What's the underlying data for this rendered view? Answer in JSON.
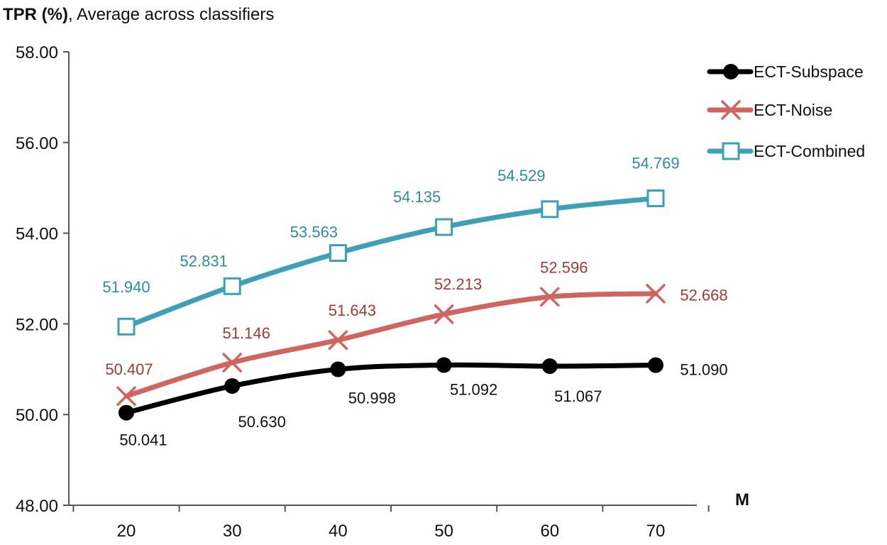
{
  "chart_data": {
    "type": "line",
    "title_bold": "TPR (%)",
    "title_rest": ", Average across classifiers",
    "xlabel": "M",
    "ylabel": "",
    "x": [
      20,
      30,
      40,
      50,
      60,
      70
    ],
    "x_tick_labels": [
      "20",
      "30",
      "40",
      "50",
      "60",
      "70"
    ],
    "ylim": [
      48,
      58
    ],
    "y_ticks": [
      48,
      50,
      52,
      54,
      56,
      58
    ],
    "y_tick_labels": [
      "48.00",
      "50.00",
      "52.00",
      "54.00",
      "56.00",
      "58.00"
    ],
    "grid": false,
    "legend_position": "top-right",
    "series": [
      {
        "name": "ECT-Subspace",
        "color": "#000000",
        "label_color": "#111111",
        "marker": "circle",
        "values": [
          50.041,
          50.63,
          50.998,
          51.092,
          51.067,
          51.09
        ],
        "labels": [
          "50.041",
          "50.630",
          "50.998",
          "51.092",
          "51.067",
          "51.090"
        ]
      },
      {
        "name": "ECT-Noise",
        "color": "#cf6461",
        "label_color": "#a23a36",
        "marker": "x",
        "values": [
          50.407,
          51.146,
          51.643,
          52.213,
          52.596,
          52.668
        ],
        "labels": [
          "50.407",
          "51.146",
          "51.643",
          "52.213",
          "52.596",
          "52.668"
        ]
      },
      {
        "name": "ECT-Combined",
        "color": "#3ea0b5",
        "label_color": "#2f8ba2",
        "marker": "square",
        "values": [
          51.94,
          52.831,
          53.563,
          54.135,
          54.529,
          54.769
        ],
        "labels": [
          "51.940",
          "52.831",
          "53.563",
          "54.135",
          "54.529",
          "54.769"
        ]
      }
    ]
  }
}
